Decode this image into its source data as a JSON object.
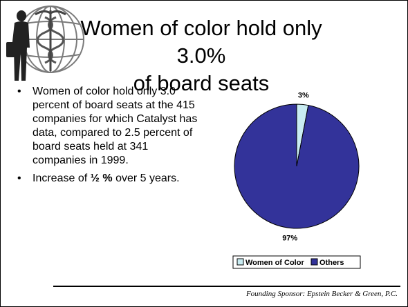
{
  "slide": {
    "title_line1": "Women of color hold only 3.0%",
    "title_line2": "of board seats",
    "bullets": [
      {
        "marker": "•",
        "text": "Women of color hold only 3.0 percent of board seats at the 415 companies for which Catalyst has data, compared to 2.5 percent of board seats held at 341 companies in 1999."
      },
      {
        "marker": "•",
        "text_before": "Increase of ",
        "text_bold": "½ %",
        "text_after": " over 5 years."
      }
    ],
    "footer": "Founding Sponsor:  Epstein Becker & Green, P.C."
  },
  "chart_data": {
    "type": "pie",
    "categories": [
      "Women of Color",
      "Others"
    ],
    "values": [
      3,
      97
    ],
    "data_labels": [
      "3%",
      "97%"
    ],
    "colors": [
      "#c9ecf2",
      "#33339a"
    ],
    "legend_position": "bottom",
    "title": ""
  },
  "logo": {
    "icon": "caduceus-globe-figure-icon"
  }
}
